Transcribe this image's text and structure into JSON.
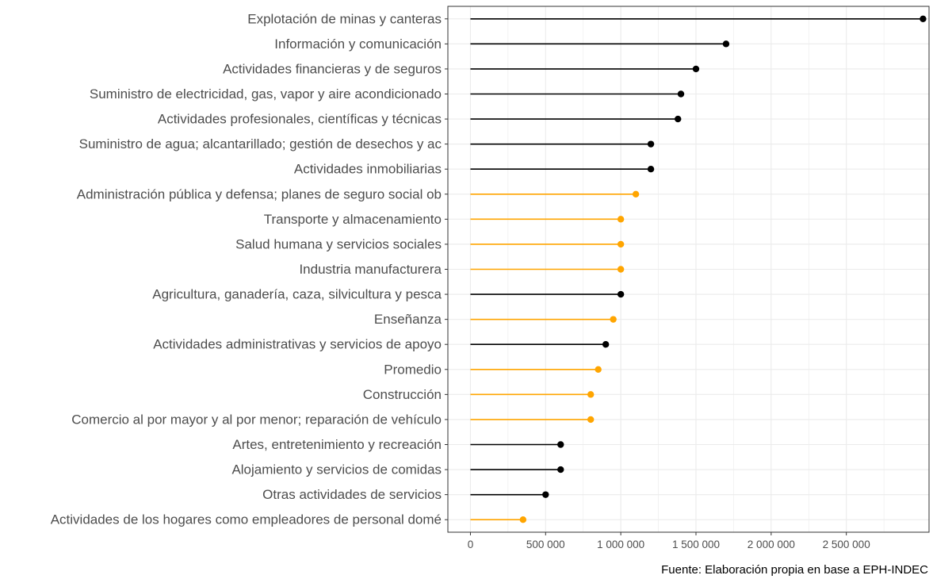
{
  "chart_data": {
    "type": "lollipop",
    "caption": "Fuente: Elaboración propia en base a EPH-INDEC",
    "xlim": [
      -150000,
      3050000
    ],
    "x_ticks": [
      0,
      500000,
      1000000,
      1500000,
      2000000,
      2500000
    ],
    "x_tick_labels": [
      "0",
      "500 000",
      "1 000 000",
      "1 500 000",
      "2 000 000",
      "2 500 000"
    ],
    "grid": true,
    "colors": {
      "black": "#000000",
      "orange": "#FFA500",
      "panel_border": "#333333",
      "grid": "#ebebeb"
    },
    "categories": [
      "Explotación de minas y canteras",
      "Información y comunicación",
      "Actividades financieras y de seguros",
      "Suministro de electricidad, gas, vapor y aire acondicionado",
      "Actividades profesionales, científicas y técnicas",
      "Suministro de agua; alcantarillado; gestión de desechos y ac",
      "Actividades inmobiliarias",
      "Administración pública y defensa; planes de seguro social ob",
      "Transporte y almacenamiento",
      "Salud humana y servicios sociales",
      "Industria manufacturera",
      "Agricultura, ganadería, caza, silvicultura y pesca",
      "Enseñanza",
      "Actividades administrativas y servicios de apoyo",
      "Promedio",
      "Construcción",
      "Comercio al por mayor y al por menor; reparación de vehículo",
      "Artes, entretenimiento y recreación",
      "Alojamiento y servicios de comidas",
      "Otras actividades de servicios",
      "Actividades de los hogares como empleadores de personal domé"
    ],
    "values": [
      3010000,
      1700000,
      1500000,
      1400000,
      1380000,
      1200000,
      1200000,
      1100000,
      1000000,
      1000000,
      1000000,
      1000000,
      950000,
      900000,
      850000,
      800000,
      800000,
      600000,
      600000,
      500000,
      350000
    ],
    "colors_per_point": [
      "black",
      "black",
      "black",
      "black",
      "black",
      "black",
      "black",
      "orange",
      "orange",
      "orange",
      "orange",
      "black",
      "orange",
      "black",
      "orange",
      "orange",
      "orange",
      "black",
      "black",
      "black",
      "orange"
    ]
  }
}
